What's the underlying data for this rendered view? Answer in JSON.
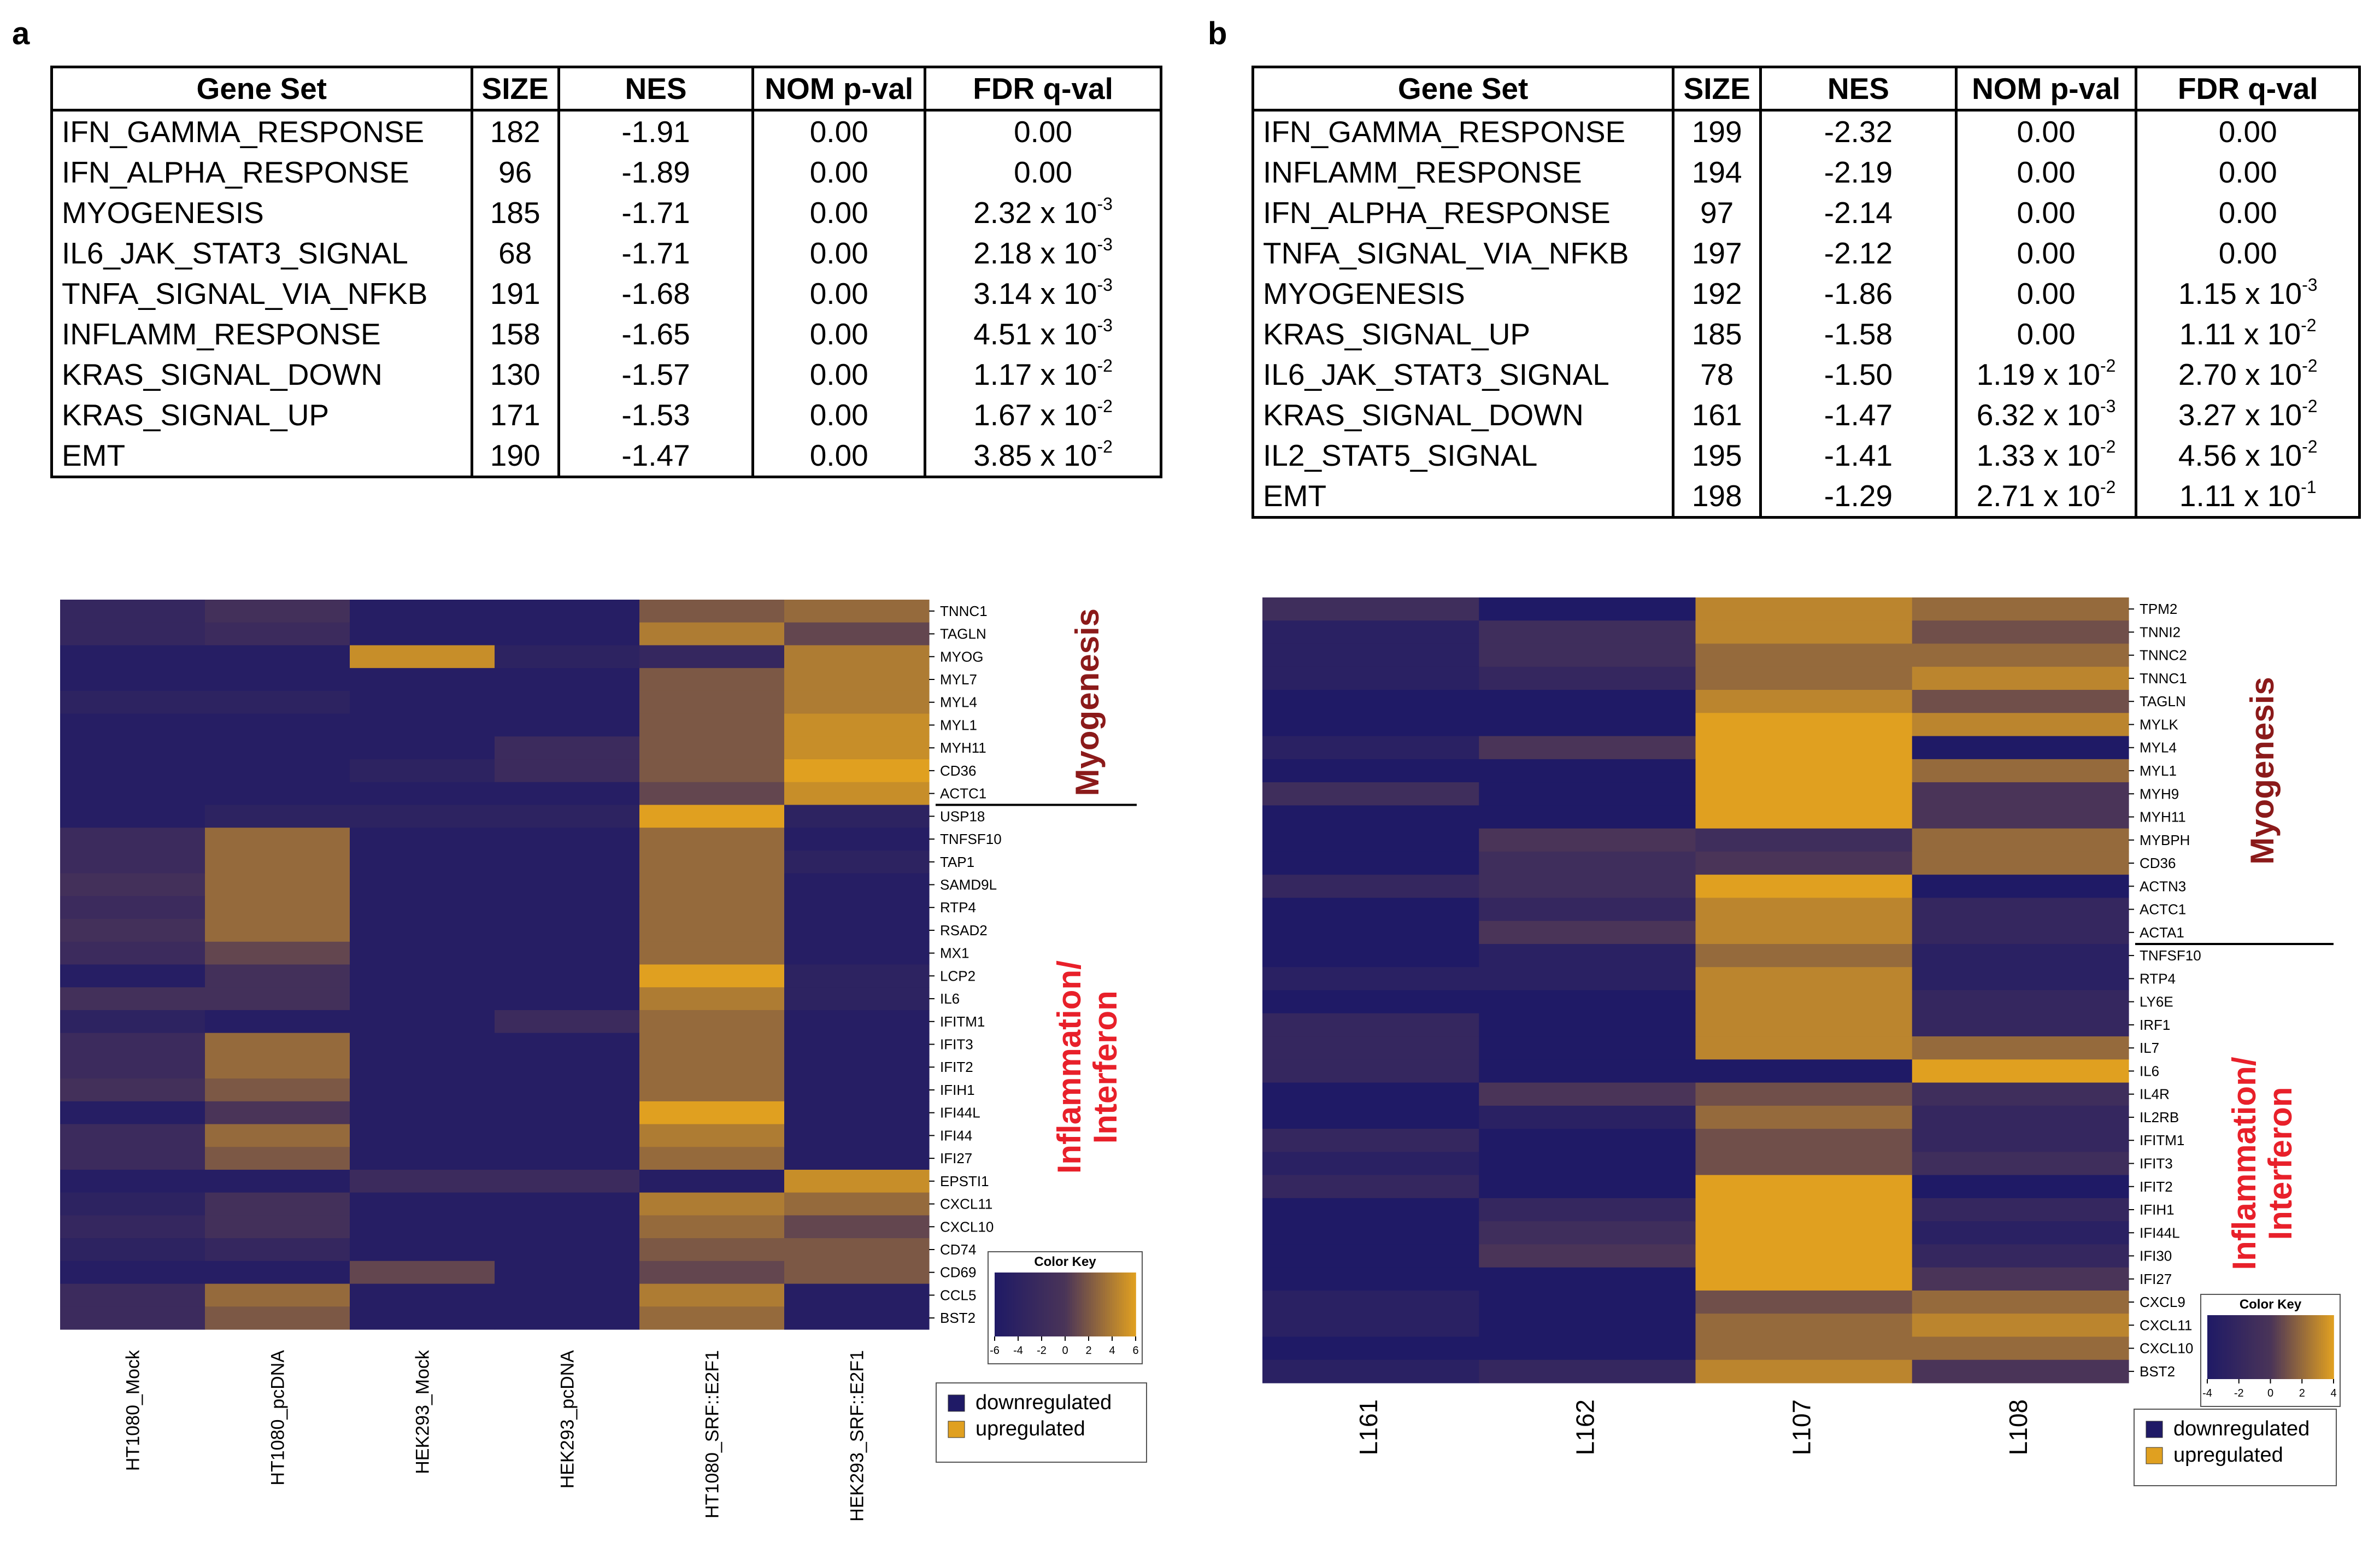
{
  "panels": {
    "a": {
      "label": "a",
      "table": {
        "headers": [
          "Gene Set",
          "SIZE",
          "NES",
          "NOM p-val",
          "FDR q-val"
        ],
        "rows": [
          {
            "gene_set": "IFN_GAMMA_RESPONSE",
            "size": "182",
            "nes": "-1.91",
            "nom_p": {
              "base": "0.00",
              "exp": null
            },
            "fdr_q": {
              "base": "0.00",
              "exp": null
            }
          },
          {
            "gene_set": "IFN_ALPHA_RESPONSE",
            "size": "96",
            "nes": "-1.89",
            "nom_p": {
              "base": "0.00",
              "exp": null
            },
            "fdr_q": {
              "base": "0.00",
              "exp": null
            }
          },
          {
            "gene_set": "MYOGENESIS",
            "size": "185",
            "nes": "-1.71",
            "nom_p": {
              "base": "0.00",
              "exp": null
            },
            "fdr_q": {
              "base": "2.32 x 10",
              "exp": "-3"
            }
          },
          {
            "gene_set": "IL6_JAK_STAT3_SIGNAL",
            "size": "68",
            "nes": "-1.71",
            "nom_p": {
              "base": "0.00",
              "exp": null
            },
            "fdr_q": {
              "base": "2.18 x 10",
              "exp": "-3"
            }
          },
          {
            "gene_set": "TNFA_SIGNAL_VIA_NFKB",
            "size": "191",
            "nes": "-1.68",
            "nom_p": {
              "base": "0.00",
              "exp": null
            },
            "fdr_q": {
              "base": "3.14 x 10",
              "exp": "-3"
            }
          },
          {
            "gene_set": "INFLAMM_RESPONSE",
            "size": "158",
            "nes": "-1.65",
            "nom_p": {
              "base": "0.00",
              "exp": null
            },
            "fdr_q": {
              "base": "4.51 x 10",
              "exp": "-3"
            }
          },
          {
            "gene_set": "KRAS_SIGNAL_DOWN",
            "size": "130",
            "nes": "-1.57",
            "nom_p": {
              "base": "0.00",
              "exp": null
            },
            "fdr_q": {
              "base": "1.17 x 10",
              "exp": "-2"
            }
          },
          {
            "gene_set": "KRAS_SIGNAL_UP",
            "size": "171",
            "nes": "-1.53",
            "nom_p": {
              "base": "0.00",
              "exp": null
            },
            "fdr_q": {
              "base": "1.67 x 10",
              "exp": "-2"
            }
          },
          {
            "gene_set": "EMT",
            "size": "190",
            "nes": "-1.47",
            "nom_p": {
              "base": "0.00",
              "exp": null
            },
            "fdr_q": {
              "base": "3.85 x 10",
              "exp": "-2"
            }
          }
        ]
      }
    },
    "b": {
      "label": "b",
      "table": {
        "headers": [
          "Gene Set",
          "SIZE",
          "NES",
          "NOM p-val",
          "FDR q-val"
        ],
        "rows": [
          {
            "gene_set": "IFN_GAMMA_RESPONSE",
            "size": "199",
            "nes": "-2.32",
            "nom_p": {
              "base": "0.00",
              "exp": null
            },
            "fdr_q": {
              "base": "0.00",
              "exp": null
            }
          },
          {
            "gene_set": "INFLAMM_RESPONSE",
            "size": "194",
            "nes": "-2.19",
            "nom_p": {
              "base": "0.00",
              "exp": null
            },
            "fdr_q": {
              "base": "0.00",
              "exp": null
            }
          },
          {
            "gene_set": "IFN_ALPHA_RESPONSE",
            "size": "97",
            "nes": "-2.14",
            "nom_p": {
              "base": "0.00",
              "exp": null
            },
            "fdr_q": {
              "base": "0.00",
              "exp": null
            }
          },
          {
            "gene_set": "TNFA_SIGNAL_VIA_NFKB",
            "size": "197",
            "nes": "-2.12",
            "nom_p": {
              "base": "0.00",
              "exp": null
            },
            "fdr_q": {
              "base": "0.00",
              "exp": null
            }
          },
          {
            "gene_set": "MYOGENESIS",
            "size": "192",
            "nes": "-1.86",
            "nom_p": {
              "base": "0.00",
              "exp": null
            },
            "fdr_q": {
              "base": "1.15 x 10",
              "exp": "-3"
            }
          },
          {
            "gene_set": "KRAS_SIGNAL_UP",
            "size": "185",
            "nes": "-1.58",
            "nom_p": {
              "base": "0.00",
              "exp": null
            },
            "fdr_q": {
              "base": "1.11 x 10",
              "exp": "-2"
            }
          },
          {
            "gene_set": "IL6_JAK_STAT3_SIGNAL",
            "size": "78",
            "nes": "-1.50",
            "nom_p": {
              "base": "1.19 x 10",
              "exp": "-2"
            },
            "fdr_q": {
              "base": "2.70 x 10",
              "exp": "-2"
            }
          },
          {
            "gene_set": "KRAS_SIGNAL_DOWN",
            "size": "161",
            "nes": "-1.47",
            "nom_p": {
              "base": "6.32 x 10",
              "exp": "-3"
            },
            "fdr_q": {
              "base": "3.27 x 10",
              "exp": "-2"
            }
          },
          {
            "gene_set": "IL2_STAT5_SIGNAL",
            "size": "195",
            "nes": "-1.41",
            "nom_p": {
              "base": "1.33 x 10",
              "exp": "-2"
            },
            "fdr_q": {
              "base": "4.56 x 10",
              "exp": "-2"
            }
          },
          {
            "gene_set": "EMT",
            "size": "198",
            "nes": "-1.29",
            "nom_p": {
              "base": "2.71 x 10",
              "exp": "-2"
            },
            "fdr_q": {
              "base": "1.11 x 10",
              "exp": "-1"
            }
          }
        ]
      }
    }
  },
  "colors": {
    "low": "#1f1a66",
    "mid": "#4a3458",
    "high": "#e0a020",
    "divider": "#000000",
    "title_red": "#e8202a",
    "title_dark": "#8b1a1a"
  },
  "chart_data": [
    {
      "type": "heatmap",
      "panel": "a",
      "columns": [
        "HT1080_Mock",
        "HT1080_pcDNA",
        "HEK293_Mock",
        "HEK293_pcDNA",
        "HT1080_SRF::E2F1",
        "HEK293_SRF::E2F1"
      ],
      "rows": [
        "TNNC1",
        "TAGLN",
        "MYOG",
        "MYL7",
        "MYL4",
        "MYL1",
        "MYH11",
        "CD36",
        "ACTC1",
        "USP18",
        "TNFSF10",
        "TAP1",
        "SAMD9L",
        "RTP4",
        "RSAD2",
        "MX1",
        "LCP2",
        "IL6",
        "IFITM1",
        "IFIT3",
        "IFIT2",
        "IFIH1",
        "IFI44L",
        "IFI44",
        "IFI27",
        "EPSTI1",
        "CXCL11",
        "CXCL10",
        "CD74",
        "CD69",
        "CCL5",
        "BST2"
      ],
      "values": [
        [
          -3,
          -1,
          -5,
          -5,
          2,
          3
        ],
        [
          -3,
          -2,
          -5,
          -5,
          4,
          1
        ],
        [
          -5,
          -5,
          5,
          -4,
          -3,
          4
        ],
        [
          -5,
          -5,
          -5,
          -5,
          2,
          4
        ],
        [
          -4,
          -4,
          -5,
          -5,
          2,
          4
        ],
        [
          -5,
          -5,
          -5,
          -5,
          2,
          5
        ],
        [
          -5,
          -5,
          -5,
          -2,
          2,
          5
        ],
        [
          -5,
          -5,
          -4,
          -2,
          2,
          6
        ],
        [
          -5,
          -5,
          -5,
          -5,
          1,
          5
        ],
        [
          -5,
          -4,
          -4,
          -4,
          6,
          -4
        ],
        [
          -2,
          3,
          -5,
          -5,
          3,
          -5
        ],
        [
          -2,
          3,
          -5,
          -5,
          3,
          -4
        ],
        [
          -1,
          3,
          -5,
          -5,
          3,
          -5
        ],
        [
          -2,
          3,
          -5,
          -5,
          3,
          -5
        ],
        [
          -1,
          3,
          -5,
          -5,
          3,
          -5
        ],
        [
          -2,
          1,
          -5,
          -5,
          3,
          -5
        ],
        [
          -5,
          -1,
          -5,
          -5,
          6,
          -4
        ],
        [
          -1,
          -1,
          -5,
          -5,
          4,
          -4
        ],
        [
          -4,
          -5,
          -5,
          -2,
          3,
          -5
        ],
        [
          -2,
          3,
          -5,
          -5,
          3,
          -5
        ],
        [
          -2,
          3,
          -5,
          -5,
          3,
          -5
        ],
        [
          -1,
          2,
          -5,
          -5,
          3,
          -5
        ],
        [
          -5,
          0,
          -5,
          -5,
          6,
          -5
        ],
        [
          -2,
          3,
          -5,
          -5,
          4,
          -5
        ],
        [
          -2,
          2,
          -5,
          -5,
          3,
          -5
        ],
        [
          -5,
          -5,
          -2,
          -2,
          -5,
          5
        ],
        [
          -4,
          -1,
          -5,
          -5,
          4,
          3
        ],
        [
          -3,
          -1,
          -5,
          -5,
          3,
          1
        ],
        [
          -4,
          -3,
          -5,
          -5,
          2,
          2
        ],
        [
          -5,
          -5,
          1,
          -5,
          1,
          2
        ],
        [
          -2,
          3,
          -5,
          -5,
          4,
          -5
        ],
        [
          -2,
          2,
          -5,
          -5,
          3,
          -5
        ]
      ],
      "row_groups": [
        {
          "name": "Myogenesis",
          "start": 0,
          "end": 8
        },
        {
          "name": "Inflammation/\nInterferon",
          "start": 9,
          "end": 31
        }
      ],
      "color_key": {
        "title": "Color Key",
        "range": [
          -6,
          6
        ],
        "ticks": [
          "-6",
          "-4",
          "-2",
          "0",
          "2",
          "4",
          "6"
        ]
      },
      "legend": [
        {
          "label": "downregulated",
          "color": "#1f1a66"
        },
        {
          "label": "upregulated",
          "color": "#e0a020"
        }
      ]
    },
    {
      "type": "heatmap",
      "panel": "b",
      "columns": [
        "L161",
        "L162",
        "L107",
        "L108"
      ],
      "rows": [
        "TPM2",
        "TNNI2",
        "TNNC2",
        "TNNC1",
        "TAGLN",
        "MYLK",
        "MYL4",
        "MYL1",
        "MYH9",
        "MYH11",
        "MYBPH",
        "CD36",
        "ACTN3",
        "ACTC1",
        "ACTA1",
        "TNFSF10",
        "RTP4",
        "LY6E",
        "IRF1",
        "IL7",
        "IL6",
        "IL4R",
        "IL2RB",
        "IFITM1",
        "IFIT3",
        "IFIT2",
        "IFIH1",
        "IFI44L",
        "IFI30",
        "IFI27",
        "CXCL9",
        "CXCL11",
        "CXCL10",
        "BST2"
      ],
      "values": [
        [
          -1,
          -4,
          3,
          2
        ],
        [
          -3,
          -1,
          3,
          1
        ],
        [
          -3,
          -1,
          2,
          2
        ],
        [
          -3,
          -2,
          2,
          3
        ],
        [
          -4,
          -4,
          3,
          1
        ],
        [
          -4,
          -4,
          4,
          3
        ],
        [
          -3,
          0,
          4,
          -4
        ],
        [
          -4,
          -4,
          4,
          2
        ],
        [
          -1,
          -4,
          4,
          0
        ],
        [
          -4,
          -4,
          4,
          0
        ],
        [
          -4,
          0,
          -1,
          2
        ],
        [
          -4,
          -1,
          0,
          2
        ],
        [
          -2,
          -1,
          4,
          -4
        ],
        [
          -4,
          -2,
          3,
          -2
        ],
        [
          -4,
          0,
          3,
          -2
        ],
        [
          -4,
          -3,
          2,
          -3
        ],
        [
          -3,
          -3,
          3,
          -3
        ],
        [
          -4,
          -4,
          3,
          -2
        ],
        [
          -2,
          -4,
          3,
          -2
        ],
        [
          -2,
          -4,
          3,
          2
        ],
        [
          -2,
          -4,
          -4,
          4
        ],
        [
          -4,
          0,
          1,
          -1
        ],
        [
          -4,
          -3,
          2,
          -2
        ],
        [
          -2,
          -4,
          1,
          -2
        ],
        [
          -3,
          -4,
          1,
          -1
        ],
        [
          -2,
          -4,
          4,
          -4
        ],
        [
          -4,
          -2,
          4,
          -2
        ],
        [
          -4,
          -1,
          4,
          -3
        ],
        [
          -4,
          0,
          4,
          -2
        ],
        [
          -4,
          -4,
          4,
          0
        ],
        [
          -3,
          -4,
          1,
          2
        ],
        [
          -3,
          -4,
          2,
          3
        ],
        [
          -4,
          -4,
          2,
          2
        ],
        [
          -3,
          -2,
          3,
          0
        ]
      ],
      "row_groups": [
        {
          "name": "Myogenesis",
          "start": 0,
          "end": 14
        },
        {
          "name": "Inflammation/\nInterferon",
          "start": 15,
          "end": 33
        }
      ],
      "color_key": {
        "title": "Color Key",
        "range": [
          -4,
          4
        ],
        "ticks": [
          "-4",
          "-2",
          "0",
          "2",
          "4"
        ]
      },
      "legend": [
        {
          "label": "downregulated",
          "color": "#1f1a66"
        },
        {
          "label": "upregulated",
          "color": "#e0a020"
        }
      ]
    }
  ]
}
